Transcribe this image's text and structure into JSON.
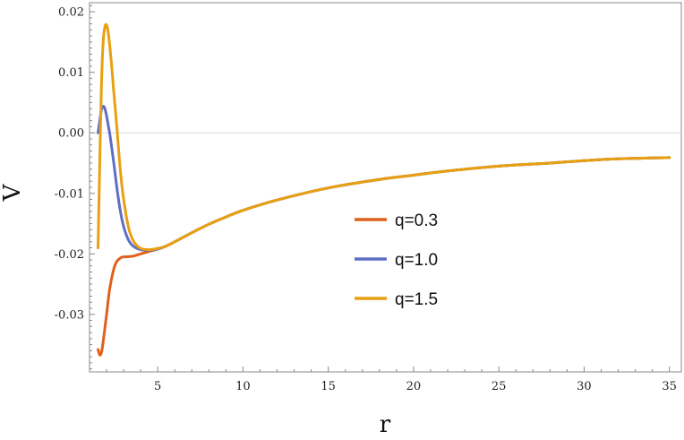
{
  "chart_data": {
    "type": "line",
    "title": "",
    "xlabel": "r",
    "ylabel": "V",
    "xlim": [
      1.0,
      35.7
    ],
    "ylim": [
      -0.0395,
      0.0215
    ],
    "x_ticks": [
      5,
      10,
      15,
      20,
      25,
      30,
      35
    ],
    "x_tick_labels": [
      "5",
      "10",
      "15",
      "20",
      "25",
      "30",
      "35"
    ],
    "y_ticks": [
      0.02,
      0.01,
      0.0,
      -0.01,
      -0.02,
      -0.03
    ],
    "y_tick_labels": [
      "0.02",
      "0.01",
      "0.00",
      "-0.01",
      "-0.02",
      "-0.03"
    ],
    "reference_line_y": 0.0,
    "grid": false,
    "legend_position": "center-right",
    "series": [
      {
        "name": "q=0.3",
        "color": "#e0601e",
        "x": [
          1.5,
          1.6,
          1.7,
          1.8,
          2.0,
          2.2,
          2.5,
          2.8,
          3.0,
          3.5,
          4.0,
          4.5,
          5.0,
          5.5,
          6,
          7,
          8,
          9,
          10,
          12,
          15,
          18,
          20,
          22,
          25,
          28,
          30,
          32,
          35
        ],
        "y": [
          -0.0358,
          -0.0367,
          -0.0363,
          -0.0345,
          -0.03,
          -0.0255,
          -0.0218,
          -0.0207,
          -0.0205,
          -0.0204,
          -0.02,
          -0.0196,
          -0.0192,
          -0.0187,
          -0.018,
          -0.0165,
          -0.0151,
          -0.0139,
          -0.0128,
          -0.0111,
          -0.0091,
          -0.0077,
          -0.007,
          -0.0063,
          -0.0055,
          -0.005,
          -0.0046,
          -0.0043,
          -0.0041
        ]
      },
      {
        "name": "q=1.0",
        "color": "#5e6ec4",
        "x": [
          1.5,
          1.6,
          1.7,
          1.8,
          1.9,
          2.0,
          2.1,
          2.2,
          2.4,
          2.6,
          2.8,
          3.0,
          3.3,
          3.6,
          4.0,
          4.5,
          5.0,
          5.5,
          6,
          7,
          8,
          9,
          10,
          12,
          15,
          18,
          20,
          22,
          25,
          28,
          30,
          32,
          35
        ],
        "y": [
          0.0,
          0.002,
          0.0038,
          0.0044,
          0.004,
          0.0028,
          0.0012,
          -0.0004,
          -0.0045,
          -0.009,
          -0.0128,
          -0.0155,
          -0.0178,
          -0.0188,
          -0.0193,
          -0.0194,
          -0.0192,
          -0.0187,
          -0.018,
          -0.0165,
          -0.0151,
          -0.0139,
          -0.0128,
          -0.0111,
          -0.0091,
          -0.0077,
          -0.007,
          -0.0063,
          -0.0055,
          -0.005,
          -0.0046,
          -0.0043,
          -0.0041
        ]
      },
      {
        "name": "q=1.5",
        "color": "#e8a010",
        "x": [
          1.5,
          1.6,
          1.7,
          1.8,
          1.9,
          2.0,
          2.1,
          2.2,
          2.3,
          2.4,
          2.6,
          2.8,
          3.0,
          3.3,
          3.6,
          4.0,
          4.5,
          5.0,
          5.5,
          6,
          7,
          8,
          9,
          10,
          12,
          15,
          18,
          20,
          22,
          25,
          28,
          30,
          32,
          35
        ],
        "y": [
          -0.019,
          -0.005,
          0.008,
          0.015,
          0.0175,
          0.0178,
          0.0165,
          0.014,
          0.011,
          0.0075,
          0.001,
          -0.006,
          -0.011,
          -0.0158,
          -0.018,
          -0.0191,
          -0.0193,
          -0.0191,
          -0.0187,
          -0.018,
          -0.0165,
          -0.0151,
          -0.0139,
          -0.0128,
          -0.0111,
          -0.0091,
          -0.0077,
          -0.007,
          -0.0063,
          -0.0055,
          -0.005,
          -0.0046,
          -0.0043,
          -0.0041
        ]
      }
    ]
  }
}
